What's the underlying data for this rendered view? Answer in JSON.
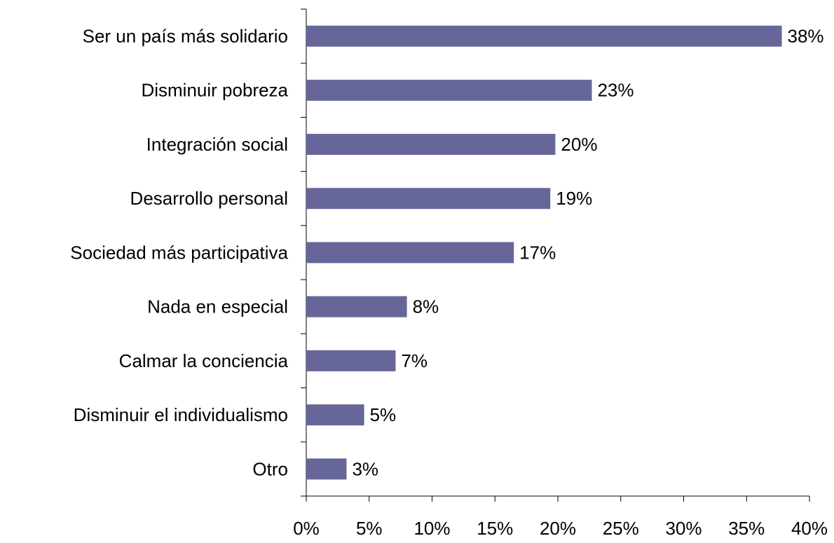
{
  "chart_data": {
    "type": "hbar",
    "categories": [
      "Ser un país más solidario",
      "Disminuir pobreza",
      "Integración social",
      "Desarrollo personal",
      "Sociedad más participativa",
      "Nada en especial",
      "Calmar la conciencia",
      "Disminuir el individualismo",
      "Otro"
    ],
    "values": [
      37.8,
      22.7,
      19.8,
      19.4,
      16.5,
      8.0,
      7.1,
      4.6,
      3.2
    ],
    "value_labels": [
      "38%",
      "23%",
      "20%",
      "19%",
      "17%",
      "8%",
      "7%",
      "5%",
      "3%"
    ],
    "color": "#666699",
    "xlim": [
      0,
      40
    ],
    "xticks": [
      {
        "value": 0,
        "label": "0%"
      },
      {
        "value": 5,
        "label": "5%"
      },
      {
        "value": 10,
        "label": "10%"
      },
      {
        "value": 15,
        "label": "15%"
      },
      {
        "value": 20,
        "label": "20%"
      },
      {
        "value": 25,
        "label": "25%"
      },
      {
        "value": 30,
        "label": "30%"
      },
      {
        "value": 35,
        "label": "35%"
      },
      {
        "value": 40,
        "label": "40%"
      }
    ],
    "grid": false
  }
}
